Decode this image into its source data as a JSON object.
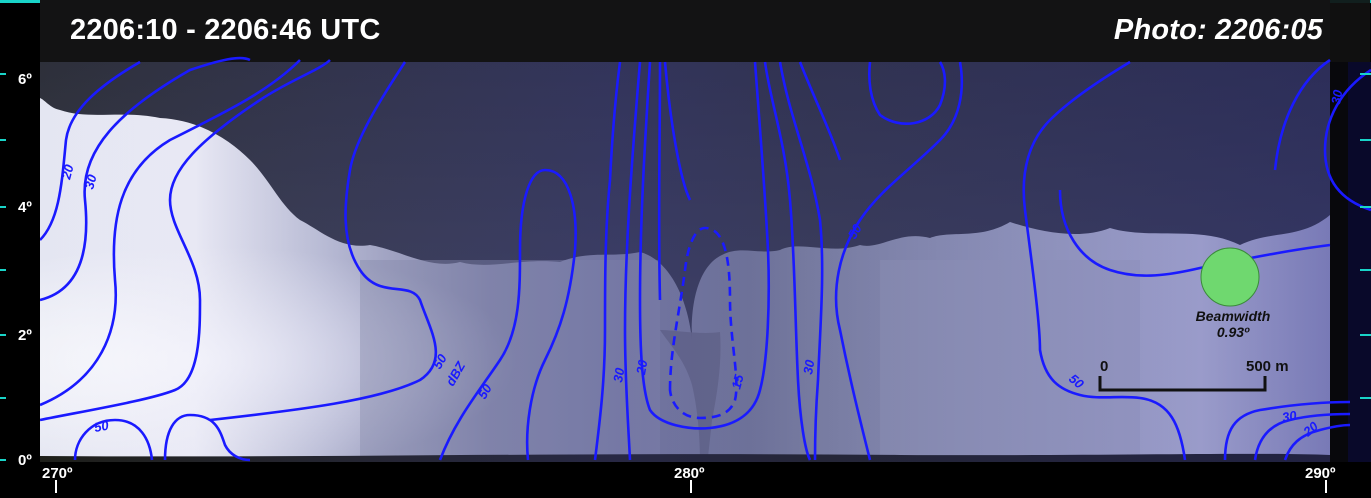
{
  "header": {
    "time_range": "2206:10 - 2206:46 UTC",
    "photo_time": "Photo: 2206:05"
  },
  "elevation_axis": {
    "labels": [
      "6º",
      "4º",
      "2º",
      "0º"
    ]
  },
  "azimuth_axis": {
    "labels": [
      "270º",
      "280º",
      "290º"
    ]
  },
  "contours": {
    "color": "#1a1aff",
    "labels": [
      "20",
      "30",
      "50",
      "50",
      "dBZ",
      "50",
      "30",
      "20",
      "15",
      "30",
      "50",
      "50",
      "30",
      "20",
      "30"
    ]
  },
  "beamwidth": {
    "title": "Beamwidth",
    "value": "0.93º",
    "color": "#6fd86f"
  },
  "scale_bar": {
    "start_label": "0",
    "end_label": "500 m"
  },
  "colors": {
    "frame_accent": "#19d4c8",
    "header_bar": "#111111"
  }
}
